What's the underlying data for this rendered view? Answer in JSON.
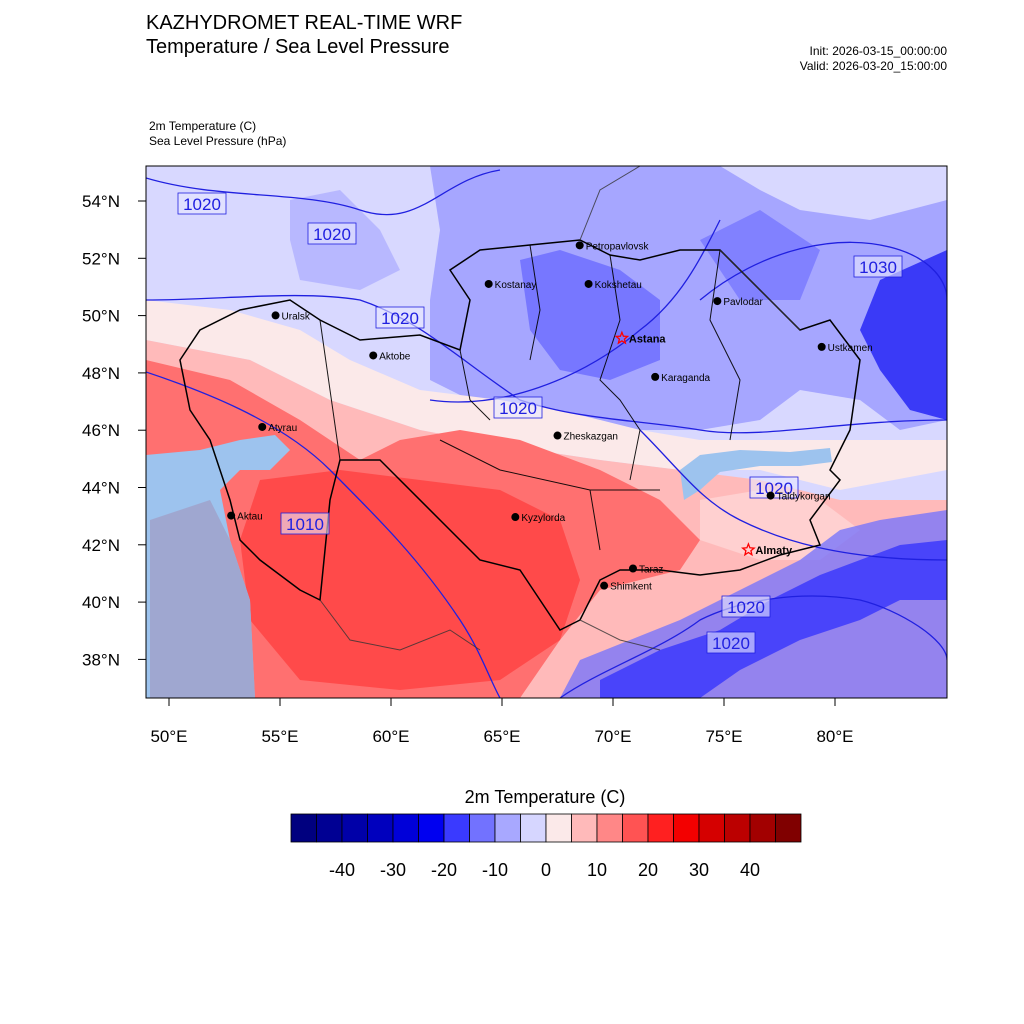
{
  "title": "KAZHYDROMET REAL-TIME WRF",
  "subtitle": "Temperature / Sea Level Pressure",
  "init_time": "Init: 2026-03-15_00:00:00",
  "valid_time": "Valid: 2026-03-20_15:00:00",
  "field_label_1": "2m Temperature   (C)",
  "field_label_2": "Sea Level Pressure   (hPa)",
  "lat_labels": [
    "54°N",
    "52°N",
    "50°N",
    "48°N",
    "46°N",
    "44°N",
    "42°N",
    "40°N",
    "38°N"
  ],
  "lon_labels": [
    "50°E",
    "55°E",
    "60°E",
    "65°E",
    "70°E",
    "75°E",
    "80°E"
  ],
  "isobar_labels": [
    "1020",
    "1020",
    "1020",
    "1020",
    "1030",
    "1020",
    "1010",
    "1020",
    "1020"
  ],
  "cities": [
    {
      "name": "Petropavlovsk",
      "lon": 68.5,
      "lat": 52.45,
      "capital": false
    },
    {
      "name": "Kostanay",
      "lon": 64.4,
      "lat": 51.1,
      "capital": false
    },
    {
      "name": "Kokshetau",
      "lon": 68.9,
      "lat": 51.1,
      "capital": false
    },
    {
      "name": "Uralsk",
      "lon": 54.8,
      "lat": 50.0,
      "capital": false
    },
    {
      "name": "Pavlodar",
      "lon": 74.7,
      "lat": 50.5,
      "capital": false
    },
    {
      "name": "Astana",
      "lon": 70.4,
      "lat": 49.2,
      "capital": true
    },
    {
      "name": "Aktobe",
      "lon": 59.2,
      "lat": 48.6,
      "capital": false
    },
    {
      "name": "Ustkamen",
      "lon": 79.4,
      "lat": 48.9,
      "capital": false
    },
    {
      "name": "Karaganda",
      "lon": 71.9,
      "lat": 47.85,
      "capital": false
    },
    {
      "name": "Atyrau",
      "lon": 54.2,
      "lat": 46.1,
      "capital": false
    },
    {
      "name": "Zheskazgan",
      "lon": 67.5,
      "lat": 45.8,
      "capital": false
    },
    {
      "name": "Taldykorgan",
      "lon": 77.1,
      "lat": 43.7,
      "capital": false
    },
    {
      "name": "Aktau",
      "lon": 52.8,
      "lat": 43.0,
      "capital": false
    },
    {
      "name": "Kyzylorda",
      "lon": 65.6,
      "lat": 42.95,
      "capital": false
    },
    {
      "name": "Almaty",
      "lon": 76.1,
      "lat": 41.8,
      "capital": true
    },
    {
      "name": "Taraz",
      "lon": 70.9,
      "lat": 41.15,
      "capital": false
    },
    {
      "name": "Shimkent",
      "lon": 69.6,
      "lat": 40.55,
      "capital": false
    }
  ],
  "colorbar": {
    "title": "2m Temperature  (C)",
    "colors": [
      "#00007f",
      "#000093",
      "#0000a8",
      "#0000be",
      "#0000d9",
      "#0000f0",
      "#3a3aff",
      "#7272ff",
      "#a8a8ff",
      "#d6d6ff",
      "#fbe9e9",
      "#ffbaba",
      "#ff8787",
      "#ff5353",
      "#ff2020",
      "#f30000",
      "#d50000",
      "#bb0000",
      "#a20000",
      "#800000"
    ],
    "tick_labels": [
      "-40",
      "-30",
      "-20",
      "-10",
      "0",
      "10",
      "20",
      "30",
      "40"
    ]
  },
  "map": {
    "ocean_color": "#9dc3ee",
    "coast_color": "#6f8fcf",
    "isobar_color": "#2020e0",
    "border_color": "#000000",
    "capital_color": "#ff0000"
  }
}
